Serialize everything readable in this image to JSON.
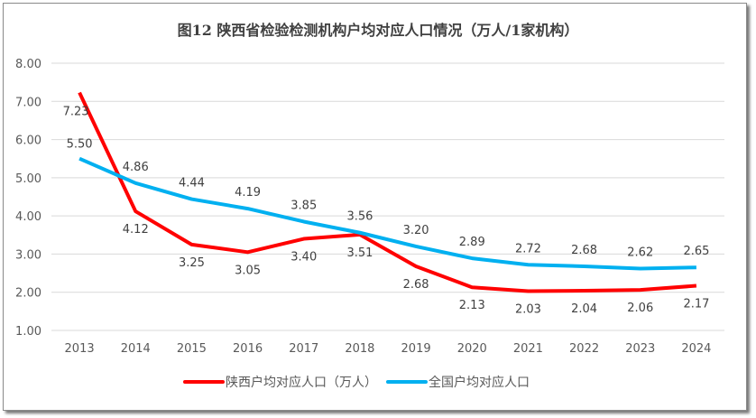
{
  "chart_data": {
    "type": "line",
    "title": "图12  陕西省检验检测机构户均对应人口情况（万人/1家机构）",
    "categories": [
      "2013",
      "2014",
      "2015",
      "2016",
      "2017",
      "2018",
      "2019",
      "2020",
      "2021",
      "2022",
      "2023",
      "2024"
    ],
    "series": [
      {
        "name": "陕西户均对应人口（万人）",
        "color": "#ff0000",
        "values": [
          7.23,
          4.12,
          3.25,
          3.05,
          3.4,
          3.51,
          2.68,
          2.13,
          2.03,
          2.04,
          2.06,
          2.17
        ]
      },
      {
        "name": "全国户均对应人口",
        "color": "#00b0f0",
        "values": [
          5.5,
          4.86,
          4.44,
          4.19,
          3.85,
          3.56,
          3.2,
          2.89,
          2.72,
          2.68,
          2.62,
          2.65
        ]
      }
    ],
    "ylim": [
      1,
      8
    ],
    "yticks": [
      "1.00",
      "2.00",
      "3.00",
      "4.00",
      "5.00",
      "6.00",
      "7.00",
      "8.00"
    ],
    "grid": true,
    "legend": "bottom",
    "xlabel": "",
    "ylabel": ""
  }
}
